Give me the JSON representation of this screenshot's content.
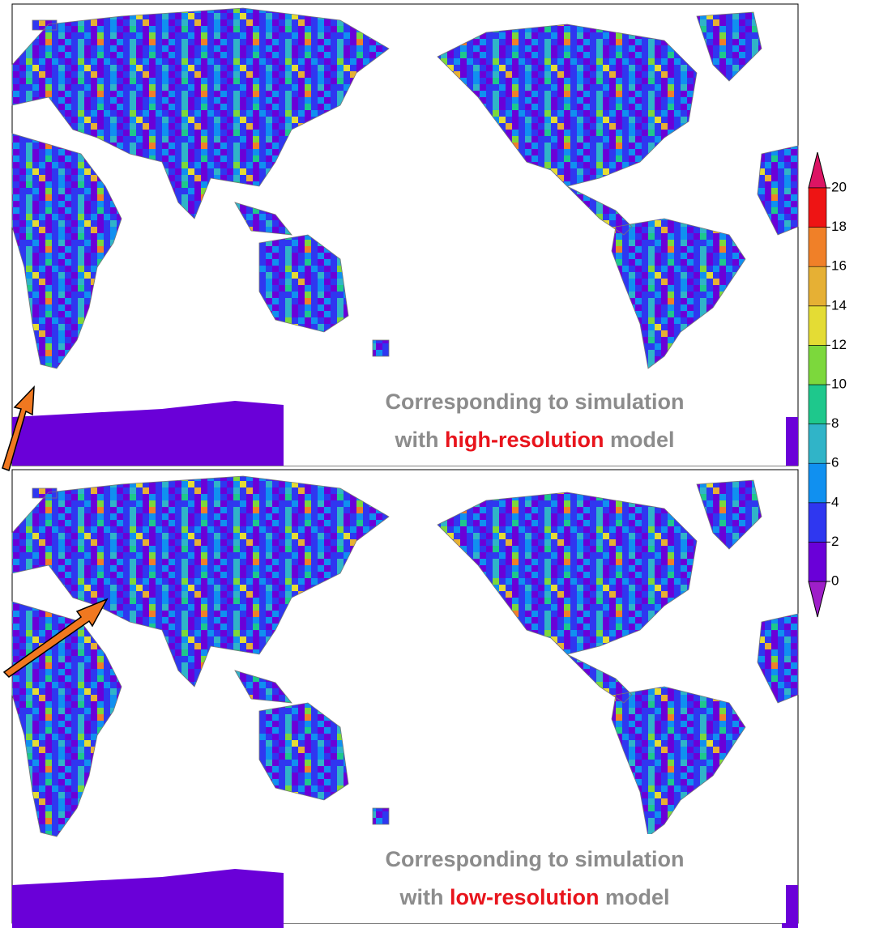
{
  "colorbar": {
    "ticks": [
      0,
      2,
      4,
      6,
      8,
      10,
      12,
      14,
      16,
      18,
      20
    ],
    "colors": [
      "#9e1fc8",
      "#6a00d8",
      "#2f37f0",
      "#1090f0",
      "#30b4c8",
      "#1ec88c",
      "#7cd83c",
      "#e4dc34",
      "#e6b034",
      "#f08028",
      "#ee1414",
      "#dc1464"
    ]
  },
  "panels": [
    {
      "caption": {
        "line1": "Corresponding to simulation",
        "prefix": "with",
        "highlight": "high-resolution",
        "suffix": "model"
      }
    },
    {
      "caption": {
        "line1": "Corresponding to simulation",
        "prefix": "with",
        "highlight": "low-resolution",
        "suffix": "model"
      }
    }
  ]
}
